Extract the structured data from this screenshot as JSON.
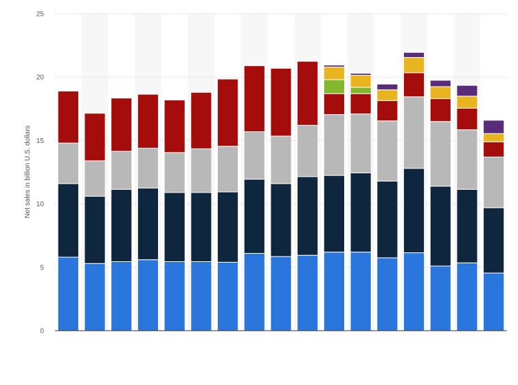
{
  "chart_data": {
    "type": "bar",
    "stacked": true,
    "title": "",
    "xlabel": "",
    "ylabel": "Net sales in billion U.S. dollars",
    "ylim": [
      0,
      25
    ],
    "yticks": [
      "0",
      "5",
      "10",
      "15",
      "20",
      "25"
    ],
    "grid": true,
    "legend": "none",
    "series": [
      {
        "color": "#2a76dd",
        "values": [
          5.8,
          5.3,
          5.45,
          5.6,
          5.45,
          5.45,
          5.4,
          6.1,
          5.85,
          5.95,
          6.2,
          6.2,
          5.75,
          6.15,
          5.1,
          5.35,
          4.55
        ]
      },
      {
        "color": "#0f263f",
        "values": [
          5.8,
          5.3,
          5.7,
          5.65,
          5.45,
          5.45,
          5.55,
          5.85,
          5.75,
          6.2,
          6.05,
          6.25,
          6.05,
          6.65,
          6.3,
          5.8,
          5.15
        ]
      },
      {
        "color": "#b8b8b8",
        "values": [
          3.2,
          2.8,
          3.0,
          3.15,
          3.15,
          3.45,
          3.6,
          3.75,
          3.75,
          4.05,
          4.8,
          4.65,
          4.75,
          5.65,
          5.1,
          4.7,
          4.0
        ]
      },
      {
        "color": "#a50c0c",
        "values": [
          4.1,
          3.75,
          4.2,
          4.25,
          4.15,
          4.45,
          5.3,
          5.2,
          5.35,
          5.05,
          1.65,
          1.6,
          1.6,
          1.9,
          1.8,
          1.7,
          1.2
        ]
      },
      {
        "color": "#83b82e",
        "values": [
          0,
          0,
          0,
          0,
          0,
          0,
          0,
          0,
          0,
          0,
          1.1,
          0.5,
          0,
          0,
          0,
          0,
          0
        ]
      },
      {
        "color": "#e8b520",
        "values": [
          0,
          0,
          0,
          0,
          0,
          0,
          0,
          0,
          0,
          0,
          1.0,
          0.95,
          0.85,
          1.2,
          0.95,
          0.95,
          0.65
        ]
      },
      {
        "color": "#5a2b7a",
        "values": [
          0,
          0,
          0,
          0,
          0,
          0,
          0,
          0,
          0,
          0,
          0.15,
          0.15,
          0.45,
          0.4,
          0.5,
          0.85,
          1.05
        ]
      }
    ]
  }
}
